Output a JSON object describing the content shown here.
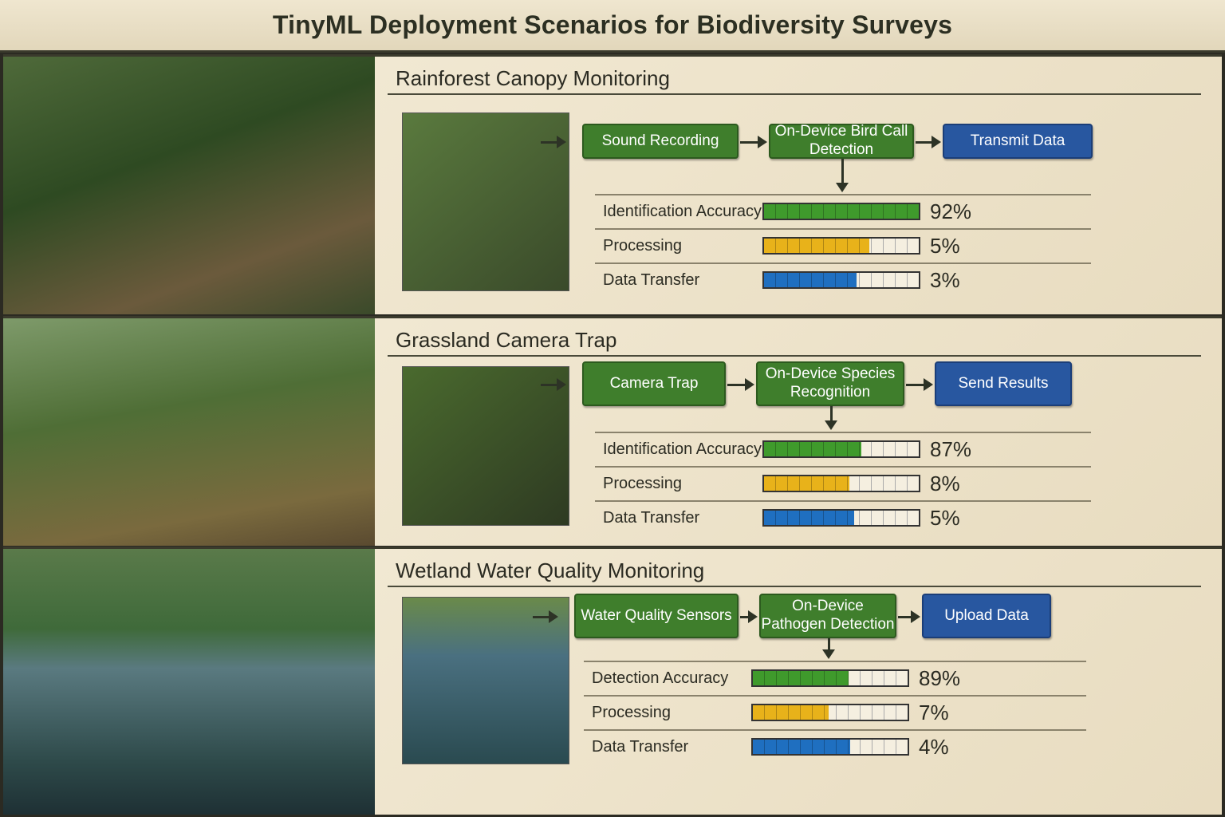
{
  "title": "TinyML Deployment Scenarios for Biodiversity Surveys",
  "colors": {
    "green": "#3f9a2c",
    "yellow": "#e8b21a",
    "blue": "#1f6fc0",
    "box_green": "#3f7e2c",
    "box_blue": "#2857a0"
  },
  "sections": [
    {
      "title": "Rainforest Canopy Monitoring",
      "photo": "hornbill-on-branch-with-acoustic-sensor",
      "thumb": "acoustic-recorder-on-tree",
      "steps": [
        {
          "label": "Sound Recording",
          "kind": "green"
        },
        {
          "label": "On-Device Bird Call Detection",
          "kind": "green"
        },
        {
          "label": "Transmit Data",
          "kind": "blue"
        }
      ],
      "metrics": [
        {
          "label": "Identification Accuracy",
          "value": "92%",
          "fill": 1.0,
          "color": "green"
        },
        {
          "label": "Processing",
          "value": "5%",
          "fill": 0.68,
          "color": "yellow"
        },
        {
          "label": "Data Transfer",
          "value": "3%",
          "fill": 0.6,
          "color": "blue"
        }
      ]
    },
    {
      "title": "Grassland Camera Trap",
      "photo": "wild-cat-with-camera-trap",
      "thumb": "hand-holding-camera-trap",
      "steps": [
        {
          "label": "Camera Trap",
          "kind": "green"
        },
        {
          "label": "On-Device Species Recognition",
          "kind": "green"
        },
        {
          "label": "Send Results",
          "kind": "blue"
        }
      ],
      "metrics": [
        {
          "label": "Identification Accuracy",
          "value": "87%",
          "fill": 0.63,
          "color": "green"
        },
        {
          "label": "Processing",
          "value": "8%",
          "fill": 0.55,
          "color": "yellow"
        },
        {
          "label": "Data Transfer",
          "value": "5%",
          "fill": 0.58,
          "color": "blue"
        }
      ]
    },
    {
      "title": "Wetland Water Quality Monitoring",
      "photo": "wetland-with-floating-sensor",
      "thumb": "floating-water-sensor-buoy",
      "steps": [
        {
          "label": "Water Quality Sensors",
          "kind": "green"
        },
        {
          "label": "On-Device Pathogen Detection",
          "kind": "green"
        },
        {
          "label": "Upload Data",
          "kind": "blue"
        }
      ],
      "metrics": [
        {
          "label": "Detection Accuracy",
          "value": "89%",
          "fill": 0.62,
          "color": "green"
        },
        {
          "label": "Processing",
          "value": "7%",
          "fill": 0.49,
          "color": "yellow"
        },
        {
          "label": "Data Transfer",
          "value": "4%",
          "fill": 0.63,
          "color": "blue"
        }
      ]
    }
  ]
}
